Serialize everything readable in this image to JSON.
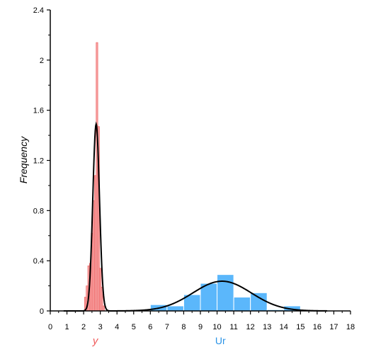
{
  "chart_data": {
    "type": "bar",
    "ylabel": "Frequency",
    "xlim": [
      0,
      18
    ],
    "ylim": [
      0,
      2.4
    ],
    "xticks": [
      0,
      1,
      2,
      3,
      4,
      5,
      6,
      7,
      8,
      9,
      10,
      11,
      12,
      13,
      14,
      15,
      16,
      17,
      18
    ],
    "yticks": [
      0,
      0.4,
      0.8,
      1.2,
      1.6,
      2,
      2.4
    ],
    "ytick_labels": [
      "0",
      "0.4",
      "0.8",
      "1.2",
      "1.6",
      "2",
      "2.4"
    ],
    "grid": false,
    "legend": "none",
    "series": [
      {
        "name": "y",
        "label_x": 2.7,
        "color": "#f05a5a",
        "fill": "#f5a0a0",
        "bins": [
          {
            "x0": 2.05,
            "x1": 2.15,
            "value": 0.11
          },
          {
            "x0": 2.15,
            "x1": 2.25,
            "value": 0.2
          },
          {
            "x0": 2.25,
            "x1": 2.35,
            "value": 0.36
          },
          {
            "x0": 2.35,
            "x1": 2.45,
            "value": 0.38
          },
          {
            "x0": 2.45,
            "x1": 2.55,
            "value": 0.62
          },
          {
            "x0": 2.55,
            "x1": 2.65,
            "value": 0.88
          },
          {
            "x0": 2.65,
            "x1": 2.75,
            "value": 1.08
          },
          {
            "x0": 2.75,
            "x1": 2.85,
            "value": 2.14
          },
          {
            "x0": 2.85,
            "x1": 2.95,
            "value": 1.47
          },
          {
            "x0": 2.95,
            "x1": 3.05,
            "value": 0.34
          },
          {
            "x0": 3.05,
            "x1": 3.15,
            "value": 0.19
          },
          {
            "x0": 3.15,
            "x1": 3.25,
            "value": 0.04
          }
        ],
        "fit": {
          "mean": 2.75,
          "sd": 0.2,
          "peak": 1.49
        }
      },
      {
        "name": "Ur",
        "label_x": 10.2,
        "color": "#2a93e6",
        "fill": "#5bb7fb",
        "bins": [
          {
            "x0": 6,
            "x1": 7,
            "value": 0.05
          },
          {
            "x0": 7,
            "x1": 8,
            "value": 0.04
          },
          {
            "x0": 8,
            "x1": 9,
            "value": 0.13
          },
          {
            "x0": 9,
            "x1": 10,
            "value": 0.22
          },
          {
            "x0": 10,
            "x1": 11,
            "value": 0.29
          },
          {
            "x0": 11,
            "x1": 12,
            "value": 0.11
          },
          {
            "x0": 12,
            "x1": 13,
            "value": 0.145
          },
          {
            "x0": 13,
            "x1": 14,
            "value": 0.01
          },
          {
            "x0": 14,
            "x1": 15,
            "value": 0.04
          }
        ],
        "fit": {
          "mean": 10.3,
          "sd": 1.75,
          "peak": 0.237
        }
      }
    ]
  }
}
